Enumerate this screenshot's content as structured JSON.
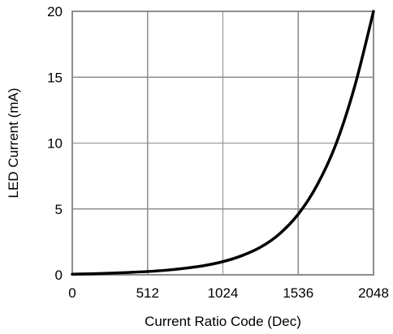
{
  "chart_data": {
    "type": "line",
    "title": "",
    "xlabel": "Current Ratio Code (Dec)",
    "ylabel": "LED Current (mA)",
    "xlim": [
      0,
      2048
    ],
    "ylim": [
      0,
      20
    ],
    "x_ticks": [
      0,
      512,
      1024,
      1536,
      2048
    ],
    "y_ticks": [
      0,
      5,
      10,
      15,
      20
    ],
    "x_tick_labels": [
      "0",
      "512",
      "1024",
      "1536",
      "2048"
    ],
    "y_tick_labels": [
      "0",
      "5",
      "10",
      "15",
      "20"
    ],
    "grid": true,
    "legend": "none",
    "colors": {
      "series": "#000000",
      "grid": "#8c8c8c",
      "background": "#ffffff"
    },
    "series": [
      {
        "x": [
          0,
          128,
          256,
          384,
          512,
          640,
          768,
          896,
          1024,
          1152,
          1280,
          1408,
          1536,
          1664,
          1792,
          1920,
          2048
        ],
        "y": [
          0.05,
          0.08,
          0.12,
          0.18,
          0.25,
          0.35,
          0.5,
          0.7,
          1.0,
          1.45,
          2.1,
          3.1,
          4.6,
          6.8,
          9.9,
          14.3,
          20.0
        ]
      }
    ]
  }
}
